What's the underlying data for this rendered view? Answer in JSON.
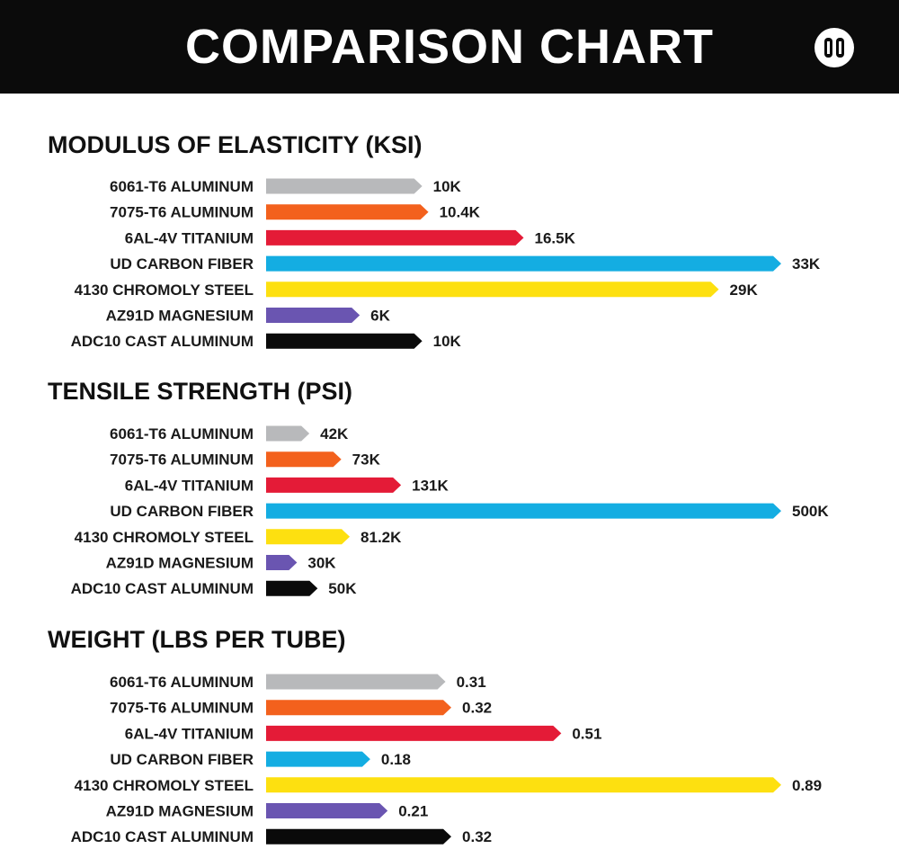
{
  "header": {
    "title": "COMPARISON CHART",
    "logo_icon": "brand-logo-icon"
  },
  "colors": {
    "6061-T6 ALUMINUM": "#b8b9bb",
    "7075-T6 ALUMINUM": "#f3611d",
    "6AL-4V TITANIUM": "#e41b37",
    "UD CARBON FIBER": "#14ade2",
    "4130 CHROMOLY STEEL": "#fde010",
    "AZ91D MAGNESIUM": "#6a55b1",
    "ADC10 CAST ALUMINUM": "#0a0a0a"
  },
  "chart_data": [
    {
      "type": "bar",
      "orientation": "horizontal",
      "title": "MODULUS OF ELASTICITY (KSI)",
      "categories": [
        "6061-T6 ALUMINUM",
        "7075-T6 ALUMINUM",
        "6AL-4V TITANIUM",
        "UD CARBON FIBER",
        "4130 CHROMOLY STEEL",
        "AZ91D MAGNESIUM",
        "ADC10 CAST ALUMINUM"
      ],
      "values": [
        10000,
        10400,
        16500,
        33000,
        29000,
        6000,
        10000
      ],
      "value_labels": [
        "10K",
        "10.4K",
        "16.5K",
        "33K",
        "29K",
        "6K",
        "10K"
      ],
      "xmax": 33000
    },
    {
      "type": "bar",
      "orientation": "horizontal",
      "title": "TENSILE STRENGTH (PSI)",
      "categories": [
        "6061-T6 ALUMINUM",
        "7075-T6 ALUMINUM",
        "6AL-4V TITANIUM",
        "UD CARBON FIBER",
        "4130 CHROMOLY STEEL",
        "AZ91D MAGNESIUM",
        "ADC10 CAST ALUMINUM"
      ],
      "values": [
        42000,
        73000,
        131000,
        500000,
        81200,
        30000,
        50000
      ],
      "value_labels": [
        "42K",
        "73K",
        "131K",
        "500K",
        "81.2K",
        "30K",
        "50K"
      ],
      "xmax": 500000
    },
    {
      "type": "bar",
      "orientation": "horizontal",
      "title": "WEIGHT (LBS PER TUBE)",
      "categories": [
        "6061-T6 ALUMINUM",
        "7075-T6 ALUMINUM",
        "6AL-4V TITANIUM",
        "UD CARBON FIBER",
        "4130 CHROMOLY STEEL",
        "AZ91D MAGNESIUM",
        "ADC10 CAST ALUMINUM"
      ],
      "values": [
        0.31,
        0.32,
        0.51,
        0.18,
        0.89,
        0.21,
        0.32
      ],
      "value_labels": [
        "0.31",
        "0.32",
        "0.51",
        "0.18",
        "0.89",
        "0.21",
        "0.32"
      ],
      "xmax": 0.89
    }
  ]
}
